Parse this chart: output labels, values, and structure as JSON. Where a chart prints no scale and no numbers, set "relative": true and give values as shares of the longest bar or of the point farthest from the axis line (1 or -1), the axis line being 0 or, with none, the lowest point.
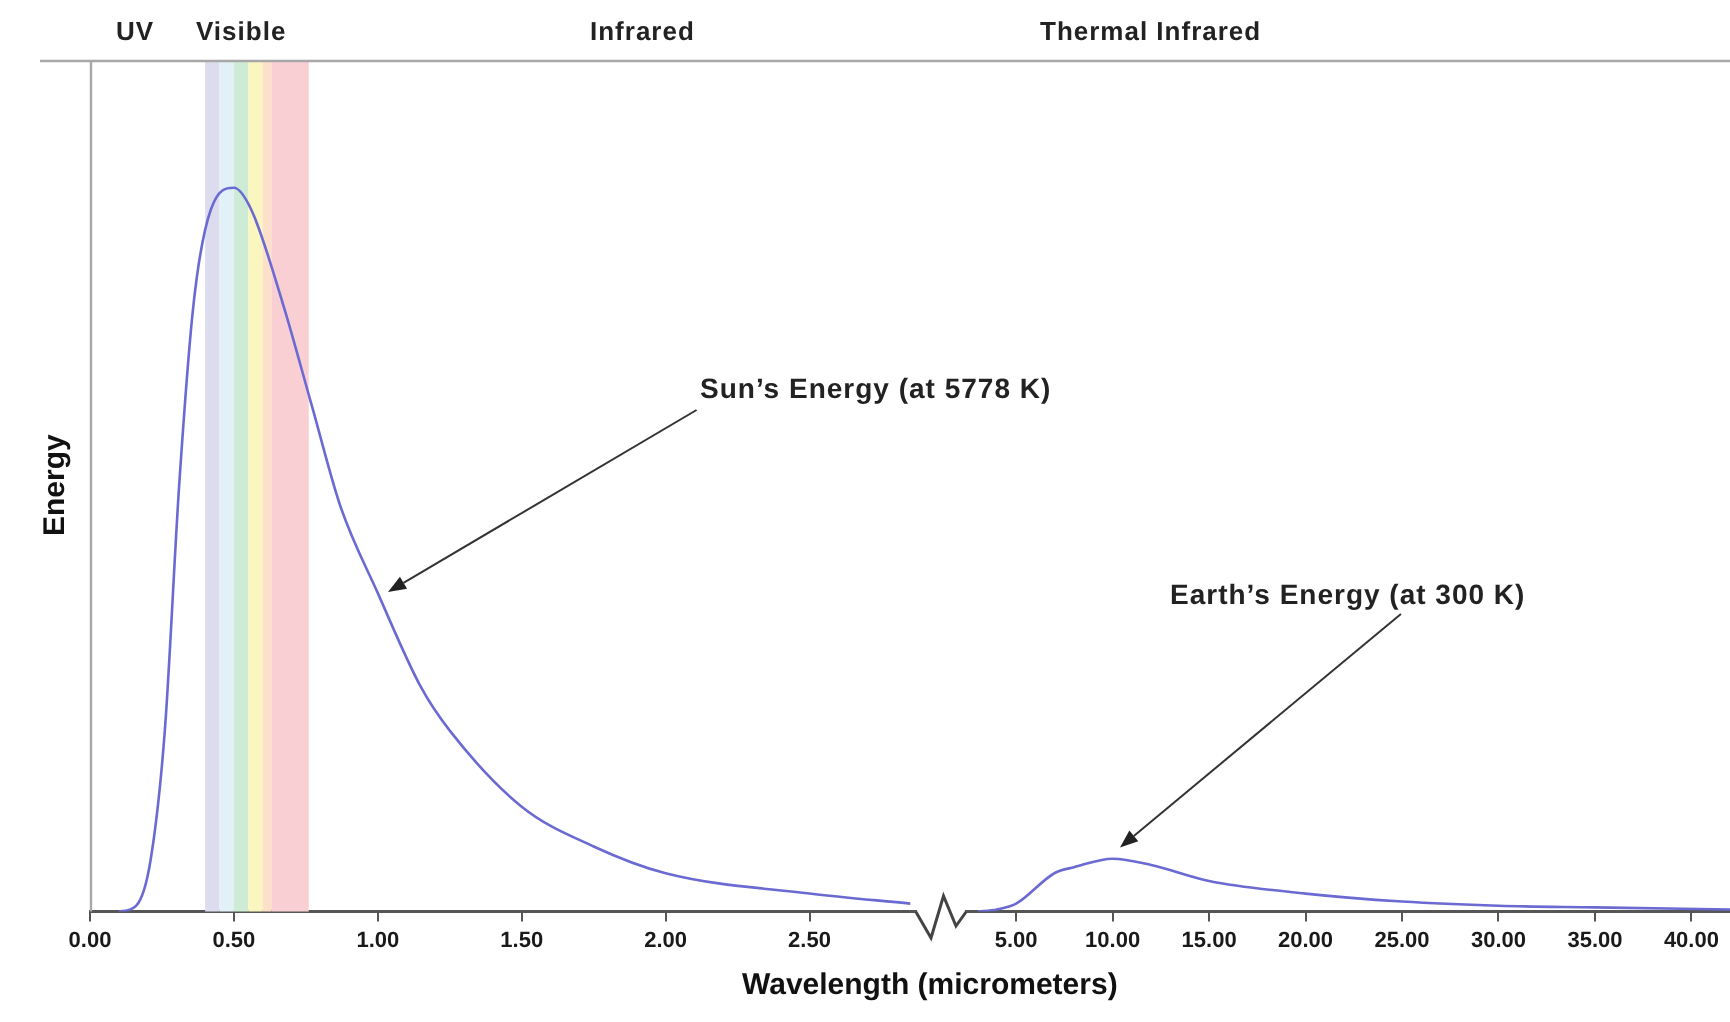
{
  "chart_data": [
    {
      "type": "line",
      "relative": true,
      "ylabel": "Energy",
      "xlabel": "Wavelength (micrometers)",
      "xlim": [
        0,
        2.87
      ],
      "xticks": [
        {
          "value": 0,
          "label": "0.00"
        },
        {
          "value": 0.5,
          "label": "0.50"
        },
        {
          "value": 1,
          "label": "1.00"
        },
        {
          "value": 1.5,
          "label": "1.50"
        },
        {
          "value": 2,
          "label": "2.00"
        },
        {
          "value": 2.5,
          "label": "2.50"
        }
      ],
      "legend": false,
      "marker": "none",
      "line_style": "solid",
      "x": [
        0.1,
        0.16,
        0.21,
        0.26,
        0.31,
        0.36,
        0.42,
        0.5,
        0.56,
        0.67,
        0.77,
        0.87,
        1.0,
        1.15,
        1.25,
        1.5,
        1.75,
        2.0,
        2.5,
        2.85
      ],
      "series": [
        {
          "color": "#6a6ad2",
          "values": [
            0,
            0.008,
            0.07,
            0.25,
            0.59,
            0.84,
            0.97,
            1.0,
            0.97,
            0.84,
            0.7,
            0.56,
            0.44,
            0.31,
            0.25,
            0.145,
            0.09,
            0.053,
            0.025,
            0.011
          ]
        }
      ],
      "bands": [
        {
          "axis": "x",
          "from": 0.4,
          "to": 0.45,
          "color": "#dcdcee"
        },
        {
          "axis": "x",
          "from": 0.45,
          "to": 0.5,
          "color": "#e2f1f7"
        },
        {
          "axis": "x",
          "from": 0.5,
          "to": 0.55,
          "color": "#cdebd5"
        },
        {
          "axis": "x",
          "from": 0.55,
          "to": 0.6,
          "color": "#fbf5c0"
        },
        {
          "axis": "x",
          "from": 0.6,
          "to": 0.63,
          "color": "#fce0c8"
        },
        {
          "axis": "x",
          "from": 0.63,
          "to": 0.76,
          "color": "#f9cfd3"
        }
      ],
      "annotations": [
        "UV",
        "Visible",
        "Infrared",
        "Sun’s Energy (at 5778 K)"
      ]
    },
    {
      "type": "line",
      "relative": true,
      "xlim": [
        2.4,
        42
      ],
      "xticks": [
        {
          "value": 5,
          "label": "5.00"
        },
        {
          "value": 10,
          "label": "10.00"
        },
        {
          "value": 15,
          "label": "15.00"
        },
        {
          "value": 20,
          "label": "20.00"
        },
        {
          "value": 25,
          "label": "25.00"
        },
        {
          "value": 30,
          "label": "30.00"
        },
        {
          "value": 35,
          "label": "35.00"
        },
        {
          "value": 40,
          "label": "40.00"
        }
      ],
      "legend": false,
      "marker": "none",
      "line_style": "solid",
      "x": [
        3,
        4,
        5,
        7,
        8,
        10,
        12,
        15,
        20,
        25,
        30,
        35,
        42
      ],
      "series": [
        {
          "color": "#6a6ad2",
          "values": [
            0,
            0.04,
            0.15,
            0.73,
            0.84,
            1,
            0.88,
            0.58,
            0.34,
            0.19,
            0.11,
            0.08,
            0.04
          ]
        }
      ],
      "annotations": [
        "Thermal Infrared",
        "Earth’s Energy (at 300 K)"
      ]
    }
  ]
}
